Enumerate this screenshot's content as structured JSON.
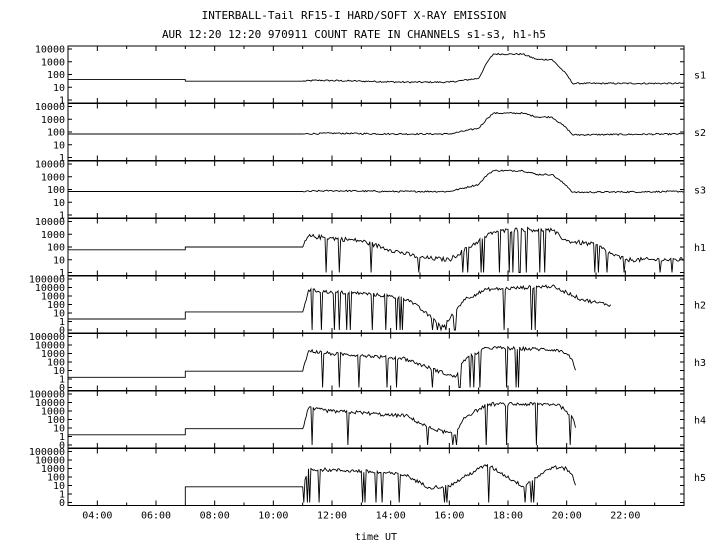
{
  "chart_data": {
    "type": "line",
    "title": "INTERBALL-Tail RF15-I HARD/SOFT X-RAY EMISSION",
    "subtitle": "AUR 12:20 12:20 970911  COUNT RATE IN CHANNELS s1-s3, h1-h5",
    "xlabel": "time UT",
    "x_unit": "hours UT",
    "xlim": [
      3.0,
      24.0
    ],
    "x_ticks": [
      {
        "value": 4,
        "label": "04:00"
      },
      {
        "value": 6,
        "label": "06:00"
      },
      {
        "value": 8,
        "label": "08:00"
      },
      {
        "value": 10,
        "label": "10:00"
      },
      {
        "value": 12,
        "label": "12:00"
      },
      {
        "value": 14,
        "label": "14:00"
      },
      {
        "value": 16,
        "label": "16:00"
      },
      {
        "value": 18,
        "label": "18:00"
      },
      {
        "value": 20,
        "label": "20:00"
      },
      {
        "value": 22,
        "label": "22:00"
      }
    ],
    "y_scale": "log",
    "grid": false,
    "panels": [
      {
        "name": "s1",
        "ylim": [
          1,
          10000
        ],
        "y_ticks": [
          "10000",
          "1000",
          "100",
          "10",
          "1"
        ],
        "x": [
          3.0,
          7.0,
          7.0,
          11.0,
          11.5,
          13.0,
          14.5,
          16.0,
          17.0,
          17.3,
          17.5,
          18.5,
          19.0,
          19.5,
          20.0,
          20.2,
          24.0
        ],
        "values": [
          40,
          40,
          30,
          30,
          35,
          30,
          25,
          25,
          50,
          1000,
          4000,
          4000,
          1500,
          1500,
          100,
          20,
          20
        ]
      },
      {
        "name": "s2",
        "ylim": [
          1,
          10000
        ],
        "y_ticks": [
          "10000",
          "1000",
          "100",
          "10",
          "1"
        ],
        "x": [
          3.0,
          11.0,
          12.0,
          14.0,
          16.0,
          17.0,
          17.3,
          17.5,
          18.5,
          19.0,
          19.5,
          20.0,
          20.2,
          24.0
        ],
        "values": [
          70,
          70,
          80,
          70,
          70,
          200,
          1200,
          3000,
          3000,
          1500,
          1500,
          200,
          60,
          70
        ]
      },
      {
        "name": "s3",
        "ylim": [
          1,
          10000
        ],
        "y_ticks": [
          "10000",
          "1000",
          "100",
          "10",
          "1"
        ],
        "x": [
          3.0,
          11.0,
          12.0,
          14.0,
          16.0,
          17.0,
          17.3,
          17.5,
          18.5,
          19.0,
          19.5,
          20.0,
          20.2,
          24.0
        ],
        "values": [
          70,
          70,
          80,
          70,
          70,
          250,
          1500,
          3000,
          3000,
          1500,
          1500,
          200,
          60,
          70
        ]
      },
      {
        "name": "h1",
        "ylim": [
          1,
          10000
        ],
        "y_ticks": [
          "10000",
          "1000",
          "100",
          "10",
          "1"
        ],
        "x": [
          3.0,
          7.0,
          7.0,
          11.0,
          11.2,
          12.0,
          13.0,
          14.0,
          15.0,
          16.0,
          17.0,
          17.5,
          18.5,
          19.5,
          20.0,
          21.0,
          21.5,
          22.0,
          24.0
        ],
        "values": [
          60,
          60,
          100,
          100,
          700,
          500,
          300,
          60,
          15,
          10,
          300,
          1500,
          2500,
          2000,
          300,
          150,
          30,
          10,
          10
        ]
      },
      {
        "name": "h2",
        "ylim": [
          1,
          100000
        ],
        "y_ticks": [
          "100000",
          "10000",
          "1000",
          "100",
          "10",
          "1",
          "0"
        ],
        "x": [
          3.0,
          7.0,
          7.0,
          11.0,
          11.2,
          12.0,
          13.0,
          14.0,
          14.6,
          15.8,
          16.5,
          17.3,
          17.5,
          19.5,
          19.7,
          20.0,
          20.5,
          21.0,
          21.5
        ],
        "values": [
          12,
          12,
          60,
          60,
          8000,
          5000,
          4000,
          2000,
          1000,
          2,
          1000,
          10000,
          10000,
          20000,
          10000,
          5000,
          1000,
          500,
          300
        ]
      },
      {
        "name": "h3",
        "ylim": [
          1,
          100000
        ],
        "y_ticks": [
          "100000",
          "10000",
          "1000",
          "100",
          "10",
          "1",
          "0"
        ],
        "x": [
          3.0,
          7.0,
          7.0,
          11.0,
          11.2,
          12.0,
          13.0,
          14.0,
          14.4,
          16.2,
          16.5,
          17.0,
          17.3,
          19.7,
          20.0,
          20.2,
          20.3
        ],
        "values": [
          10,
          10,
          40,
          40,
          4000,
          2000,
          1500,
          800,
          800,
          10,
          500,
          3000,
          8000,
          5000,
          2000,
          500,
          50
        ]
      },
      {
        "name": "h4",
        "ylim": [
          1,
          100000
        ],
        "y_ticks": [
          "100000",
          "10000",
          "1000",
          "100",
          "10",
          "1",
          "0"
        ],
        "x": [
          3.0,
          7.0,
          7.0,
          11.0,
          11.2,
          12.0,
          13.0,
          14.0,
          14.5,
          15.3,
          16.2,
          16.5,
          17.0,
          17.3,
          19.7,
          20.0,
          20.2,
          20.3
        ],
        "values": [
          10,
          10,
          40,
          40,
          4000,
          2000,
          1500,
          800,
          800,
          50,
          10,
          500,
          3000,
          10000,
          10000,
          2000,
          500,
          50
        ]
      },
      {
        "name": "h5",
        "ylim": [
          1,
          100000
        ],
        "y_ticks": [
          "100000",
          "10000",
          "1000",
          "100",
          "10",
          "1",
          "0"
        ],
        "x": [
          7.0,
          7.0,
          11.0,
          11.2,
          12.0,
          13.0,
          14.0,
          14.5,
          15.3,
          16.0,
          16.5,
          17.0,
          17.3,
          18.5,
          19.5,
          20.0,
          20.2,
          20.3
        ],
        "values": [
          1,
          35,
          35,
          2000,
          1500,
          1200,
          700,
          500,
          30,
          40,
          300,
          2000,
          5000,
          40,
          3000,
          2000,
          500,
          50
        ]
      }
    ]
  }
}
